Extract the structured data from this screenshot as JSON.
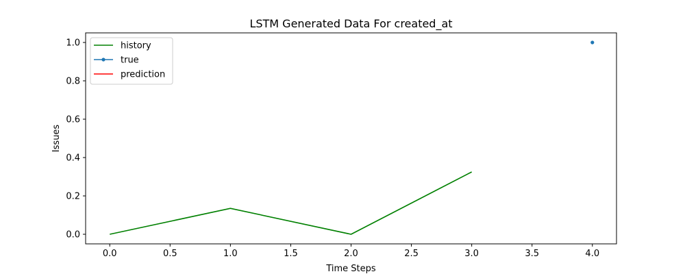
{
  "chart_data": {
    "type": "line",
    "title": "LSTM Generated Data For created_at",
    "xlabel": "Time Steps",
    "ylabel": "Issues",
    "xlim": [
      -0.2,
      4.2
    ],
    "ylim": [
      -0.05,
      1.05
    ],
    "x_ticks": [
      0.0,
      0.5,
      1.0,
      1.5,
      2.0,
      2.5,
      3.0,
      3.5,
      4.0
    ],
    "x_tick_labels": [
      "0.0",
      "0.5",
      "1.0",
      "1.5",
      "2.0",
      "2.5",
      "3.0",
      "3.5",
      "4.0"
    ],
    "y_ticks": [
      0.0,
      0.2,
      0.4,
      0.6,
      0.8,
      1.0
    ],
    "y_tick_labels": [
      "0.0",
      "0.2",
      "0.4",
      "0.6",
      "0.8",
      "1.0"
    ],
    "grid": false,
    "legend_position": "upper-left",
    "series": [
      {
        "name": "history",
        "color": "#008000",
        "marker": "none",
        "x": [
          0,
          1,
          2,
          3
        ],
        "values": [
          0.0,
          0.135,
          0.0,
          0.325
        ]
      },
      {
        "name": "true",
        "color": "#1f77b4",
        "marker": "dot",
        "x": [
          4
        ],
        "values": [
          1.0
        ]
      },
      {
        "name": "prediction",
        "color": "#ff0000",
        "marker": "none",
        "x": [],
        "values": []
      }
    ]
  }
}
